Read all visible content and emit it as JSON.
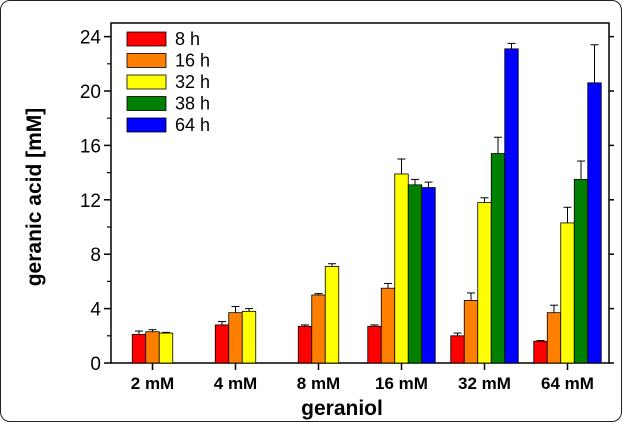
{
  "chart_data": {
    "type": "bar",
    "title": "",
    "xlabel": "geraniol",
    "ylabel": "geranic acid [mM]",
    "ylim": [
      0,
      25
    ],
    "yticks": [
      0,
      4,
      8,
      12,
      16,
      20,
      24
    ],
    "grid": false,
    "legend_position": "top-left",
    "categories": [
      "2 mM",
      "4 mM",
      "8 mM",
      "16 mM",
      "32 mM",
      "64 mM"
    ],
    "series": [
      {
        "name": "8 h",
        "color": "#ff0000",
        "values": [
          2.1,
          2.8,
          2.7,
          2.7,
          2.0,
          1.6
        ],
        "errors": [
          0.25,
          0.25,
          0.1,
          0.1,
          0.2,
          0.05
        ]
      },
      {
        "name": "16 h",
        "color": "#ff8000",
        "values": [
          2.3,
          3.7,
          5.0,
          5.5,
          4.6,
          3.7
        ],
        "errors": [
          0.15,
          0.45,
          0.1,
          0.35,
          0.55,
          0.55
        ]
      },
      {
        "name": "32 h",
        "color": "#ffff00",
        "values": [
          2.2,
          3.8,
          7.1,
          13.9,
          11.8,
          10.3
        ],
        "errors": [
          0.05,
          0.2,
          0.2,
          1.1,
          0.35,
          1.15
        ]
      },
      {
        "name": "38 h",
        "color": "#008000",
        "values": [
          null,
          null,
          null,
          13.1,
          15.4,
          13.5
        ],
        "errors": [
          null,
          null,
          null,
          0.4,
          1.2,
          1.35
        ]
      },
      {
        "name": "64 h",
        "color": "#0000ff",
        "values": [
          null,
          null,
          null,
          12.9,
          23.1,
          20.6
        ],
        "errors": [
          null,
          null,
          null,
          0.4,
          0.4,
          2.8
        ]
      }
    ]
  }
}
